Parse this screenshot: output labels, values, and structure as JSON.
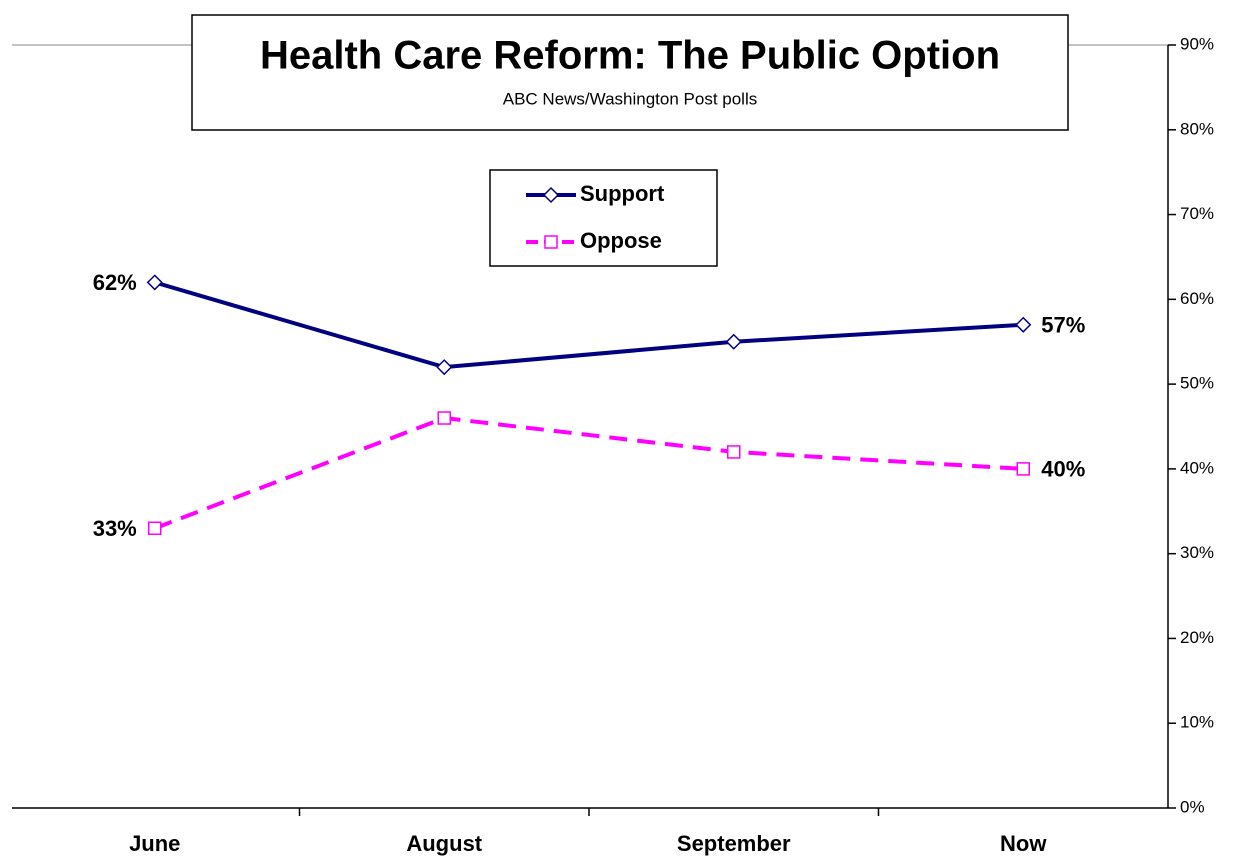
{
  "chart_data": {
    "type": "line",
    "title": "Health Care Reform: The Public Option",
    "subtitle": "ABC News/Washington Post polls",
    "categories": [
      "June",
      "August",
      "September",
      "Now"
    ],
    "series": [
      {
        "name": "Support",
        "color": "#000080",
        "marker": "diamond",
        "dashed": false,
        "values": [
          62,
          52,
          55,
          57
        ],
        "value_labels": [
          "62%",
          null,
          null,
          "57%"
        ]
      },
      {
        "name": "Oppose",
        "color": "#ff00ff",
        "marker": "square",
        "dashed": true,
        "values": [
          33,
          46,
          42,
          40
        ],
        "value_labels": [
          "33%",
          null,
          null,
          "40%"
        ]
      }
    ],
    "ylim": [
      0,
      90
    ],
    "yticks": [
      {
        "value": 0,
        "label": "0%"
      },
      {
        "value": 10,
        "label": "10%"
      },
      {
        "value": 20,
        "label": "20%"
      },
      {
        "value": 30,
        "label": "30%"
      },
      {
        "value": 40,
        "label": "40%"
      },
      {
        "value": 50,
        "label": "50%"
      },
      {
        "value": 60,
        "label": "60%"
      },
      {
        "value": 70,
        "label": "70%"
      },
      {
        "value": 80,
        "label": "80%"
      },
      {
        "value": 90,
        "label": "90%"
      }
    ],
    "y_axis_side": "right",
    "grid": false
  }
}
